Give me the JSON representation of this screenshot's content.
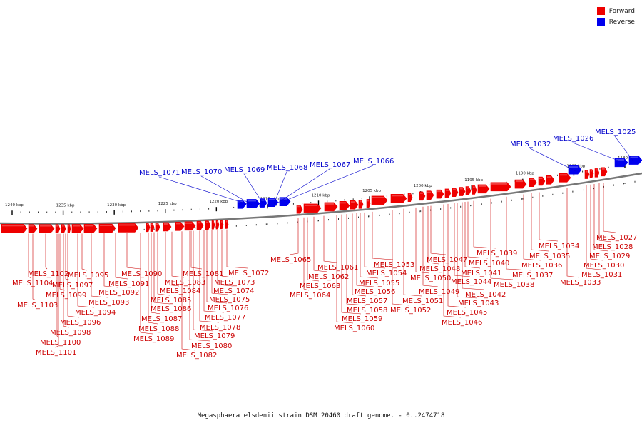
{
  "caption": "Megasphaera elsdenii strain DSM 20460 draft genome. - 0..2474718",
  "legend": [
    {
      "label": "Forward",
      "color": "#ee0000"
    },
    {
      "label": "Reverse",
      "color": "#0000ee"
    }
  ],
  "colors": {
    "forward": "#ee0000",
    "reverse": "#0000ee",
    "backbone": "#777777",
    "label_forward": "#cc0000",
    "label_reverse": "#0000cc"
  },
  "scale": {
    "unit": "kbp",
    "ticks": [
      {
        "value": 1240,
        "label": "1240 kbp"
      },
      {
        "value": 1235,
        "label": "1235 kbp"
      },
      {
        "value": 1230,
        "label": "1230 kbp"
      },
      {
        "value": 1225,
        "label": "1225 kbp"
      },
      {
        "value": 1220,
        "label": "1220 kbp"
      },
      {
        "value": 1215,
        "label": "1215 kbp"
      },
      {
        "value": 1210,
        "label": "1210 kbp"
      },
      {
        "value": 1205,
        "label": "1205 kbp"
      },
      {
        "value": 1200,
        "label": "1200 kbp"
      },
      {
        "value": 1195,
        "label": "1195 kbp"
      },
      {
        "value": 1190,
        "label": "1190 kbp"
      },
      {
        "value": 1185,
        "label": "1185 kbp"
      },
      {
        "value": 1180,
        "label": "1180 kbp"
      }
    ]
  },
  "reverse_genes": [
    "MELS_1071",
    "MELS_1070",
    "MELS_1069",
    "MELS_1068",
    "MELS_1067",
    "MELS_1066",
    "MELS_1032",
    "MELS_1026",
    "MELS_1025"
  ],
  "forward_genes": [
    "MELS_1104",
    "MELS_1103",
    "MELS_1102",
    "MELS_1101",
    "MELS_1100",
    "MELS_1099",
    "MELS_1098",
    "MELS_1097",
    "MELS_1096",
    "MELS_1095",
    "MELS_1094",
    "MELS_1093",
    "MELS_1092",
    "MELS_1091",
    "MELS_1090",
    "MELS_1089",
    "MELS_1088",
    "MELS_1087",
    "MELS_1086",
    "MELS_1085",
    "MELS_1084",
    "MELS_1083",
    "MELS_1082",
    "MELS_1081",
    "MELS_1080",
    "MELS_1079",
    "MELS_1078",
    "MELS_1077",
    "MELS_1076",
    "MELS_1075",
    "MELS_1074",
    "MELS_1073",
    "MELS_1072",
    "MELS_1065",
    "MELS_1064",
    "MELS_1063",
    "MELS_1062",
    "MELS_1061",
    "MELS_1060",
    "MELS_1059",
    "MELS_1058",
    "MELS_1057",
    "MELS_1056",
    "MELS_1055",
    "MELS_1054",
    "MELS_1053",
    "MELS_1052",
    "MELS_1051",
    "MELS_1050",
    "MELS_1049",
    "MELS_1048",
    "MELS_1047",
    "MELS_1046",
    "MELS_1045",
    "MELS_1044",
    "MELS_1043",
    "MELS_1042",
    "MELS_1041",
    "MELS_1040",
    "MELS_1039",
    "MELS_1038",
    "MELS_1037",
    "MELS_1036",
    "MELS_1035",
    "MELS_1034",
    "MELS_1033",
    "MELS_1031",
    "MELS_1030",
    "MELS_1029",
    "MELS_1028",
    "MELS_1027"
  ]
}
